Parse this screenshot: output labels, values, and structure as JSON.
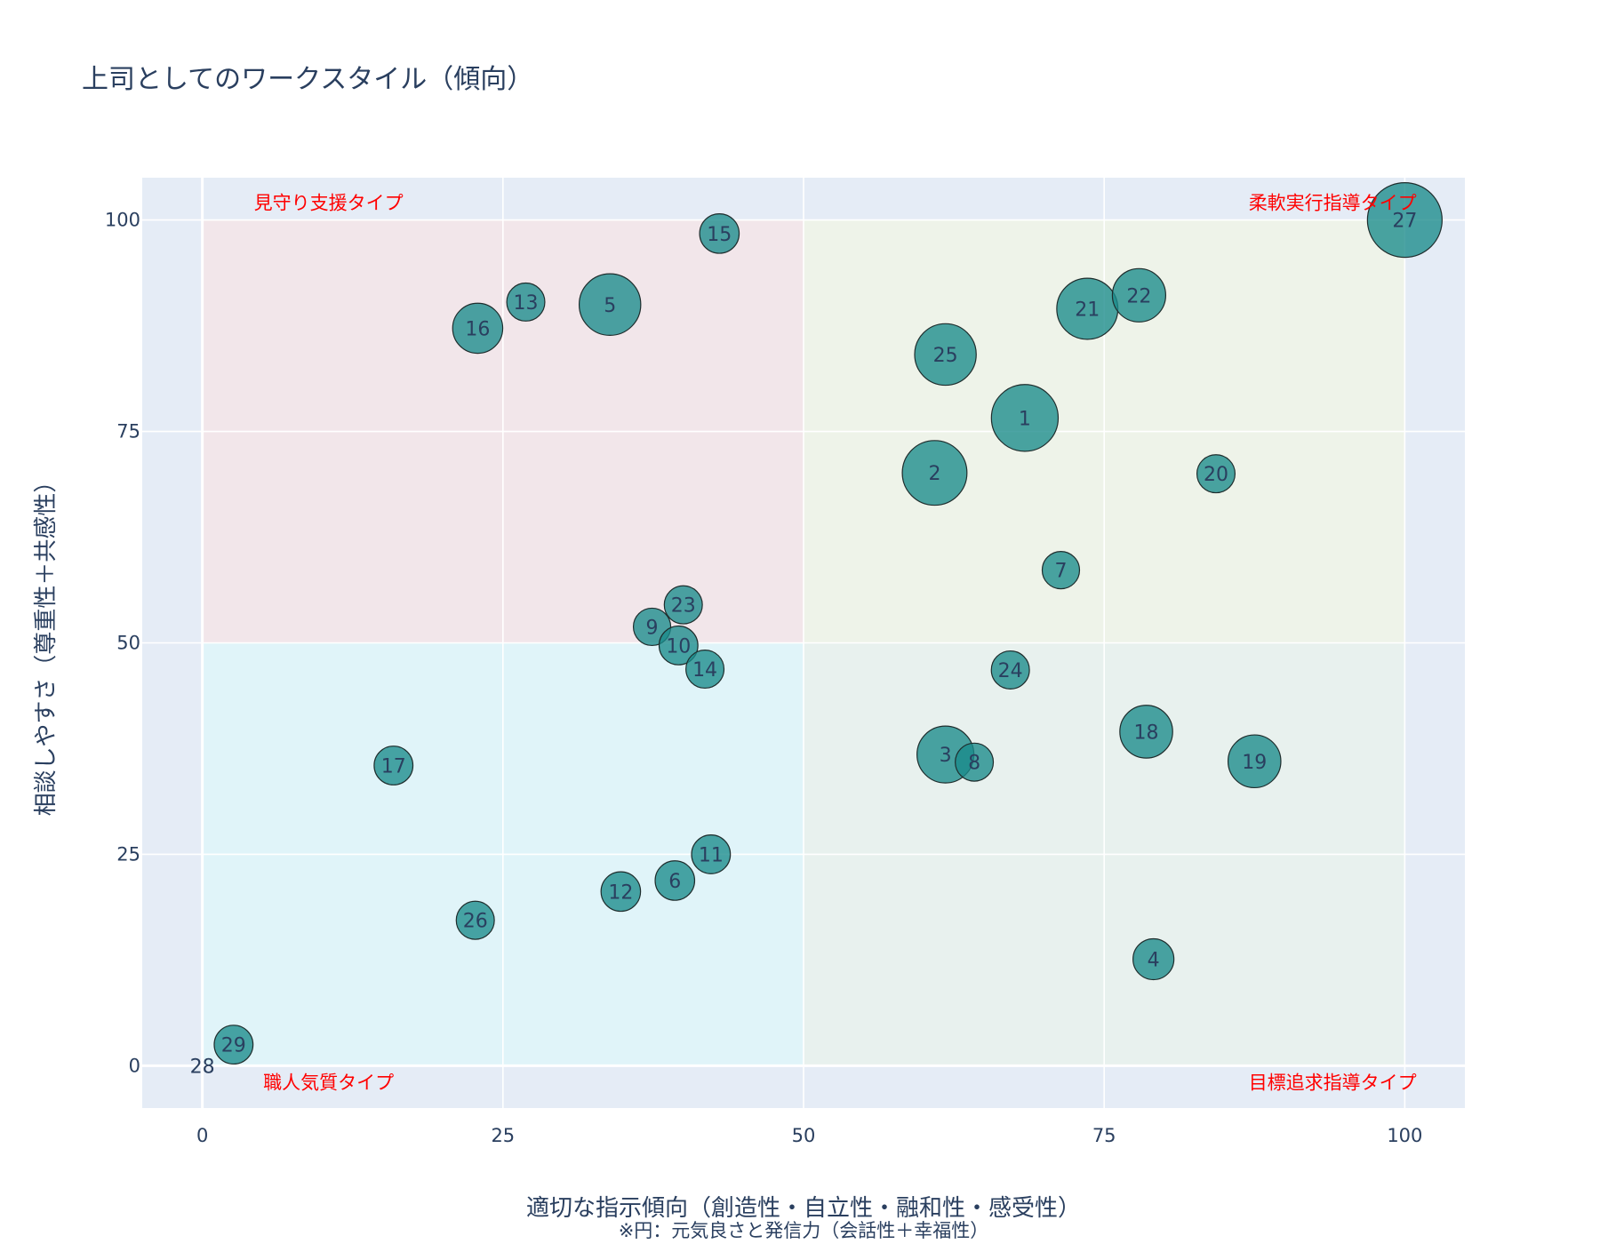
{
  "title": "上司としてのワークスタイル（傾向）",
  "chart_data": {
    "type": "scatter",
    "title": "上司としてのワークスタイル（傾向）",
    "xlabel": "適切な指示傾向（創造性・自立性・融和性・感受性）",
    "xlabel_note": "※円：元気良さと発信力（会話性＋幸福性）",
    "ylabel": "相談しやすさ（尊重性＋共感性）",
    "xlim": [
      -5,
      105
    ],
    "ylim": [
      -5,
      105
    ],
    "x_ticks": [
      0,
      25,
      50,
      75,
      100
    ],
    "y_ticks": [
      0,
      25,
      50,
      75,
      100
    ],
    "grid": true,
    "colors": {
      "plot_bg": "#e5ecf6",
      "bubble": "#1a8a8a",
      "quad_top_left": "#f2e6ea",
      "quad_top_right": "#eef3e9",
      "quad_bottom_left": "#e0f4f9",
      "quad_bottom_right": "#e8f1ee",
      "quad_label": "#ff0000"
    },
    "quadrants": [
      {
        "name": "見守り支援タイプ",
        "x": [
          0,
          50
        ],
        "y": [
          50,
          100
        ],
        "label_anchor": [
          10.5,
          102
        ]
      },
      {
        "name": "柔軟実行指導タイプ",
        "x": [
          50,
          100
        ],
        "y": [
          50,
          100
        ],
        "label_anchor": [
          94,
          102
        ]
      },
      {
        "name": "職人気質タイプ",
        "x": [
          0,
          50
        ],
        "y": [
          0,
          50
        ],
        "label_anchor": [
          10.5,
          -2
        ]
      },
      {
        "name": "目標追求指導タイプ",
        "x": [
          50,
          100
        ],
        "y": [
          0,
          50
        ],
        "label_anchor": [
          94,
          -2
        ]
      }
    ],
    "points": [
      {
        "label": "1",
        "x": 68.4,
        "y": 76.6,
        "size": 80
      },
      {
        "label": "2",
        "x": 60.9,
        "y": 70.1,
        "size": 75
      },
      {
        "label": "3",
        "x": 61.8,
        "y": 36.8,
        "size": 58
      },
      {
        "label": "4",
        "x": 79.1,
        "y": 12.6,
        "size": 30
      },
      {
        "label": "5",
        "x": 33.9,
        "y": 90.0,
        "size": 68
      },
      {
        "label": "6",
        "x": 39.3,
        "y": 21.9,
        "size": 28
      },
      {
        "label": "7",
        "x": 71.4,
        "y": 58.6,
        "size": 25
      },
      {
        "label": "8",
        "x": 64.2,
        "y": 35.9,
        "size": 26
      },
      {
        "label": "9",
        "x": 37.4,
        "y": 51.9,
        "size": 25
      },
      {
        "label": "10",
        "x": 39.6,
        "y": 49.7,
        "size": 27
      },
      {
        "label": "11",
        "x": 42.3,
        "y": 25.0,
        "size": 27
      },
      {
        "label": "12",
        "x": 34.8,
        "y": 20.6,
        "size": 28
      },
      {
        "label": "13",
        "x": 26.9,
        "y": 90.3,
        "size": 26
      },
      {
        "label": "14",
        "x": 41.8,
        "y": 46.9,
        "size": 26
      },
      {
        "label": "15",
        "x": 43.0,
        "y": 98.4,
        "size": 28
      },
      {
        "label": "16",
        "x": 22.9,
        "y": 87.2,
        "size": 45
      },
      {
        "label": "17",
        "x": 15.9,
        "y": 35.5,
        "size": 27
      },
      {
        "label": "18",
        "x": 78.5,
        "y": 39.5,
        "size": 50
      },
      {
        "label": "19",
        "x": 87.5,
        "y": 36.0,
        "size": 50
      },
      {
        "label": "20",
        "x": 84.3,
        "y": 70.0,
        "size": 26
      },
      {
        "label": "21",
        "x": 73.6,
        "y": 89.5,
        "size": 67
      },
      {
        "label": "22",
        "x": 77.9,
        "y": 91.1,
        "size": 51
      },
      {
        "label": "23",
        "x": 40.0,
        "y": 54.5,
        "size": 26
      },
      {
        "label": "24",
        "x": 67.2,
        "y": 46.8,
        "size": 26
      },
      {
        "label": "25",
        "x": 61.8,
        "y": 84.1,
        "size": 68
      },
      {
        "label": "26",
        "x": 22.7,
        "y": 17.2,
        "size": 26
      },
      {
        "label": "27",
        "x": 100.0,
        "y": 100.0,
        "size": 100
      },
      {
        "label": "28",
        "x": 0.0,
        "y": 0.0,
        "size": 0
      },
      {
        "label": "29",
        "x": 2.6,
        "y": 2.5,
        "size": 27
      }
    ]
  }
}
